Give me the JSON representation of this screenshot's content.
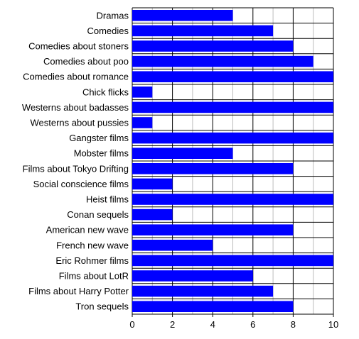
{
  "chart_data": {
    "type": "bar",
    "orientation": "horizontal",
    "title": "",
    "xlabel": "",
    "ylabel": "",
    "categories": [
      "Dramas",
      "Comedies",
      "Comedies about stoners",
      "Comedies about poo",
      "Comedies about romance",
      "Chick flicks",
      "Westerns about badasses",
      "Westerns about pussies",
      "Gangster films",
      "Mobster films",
      "Films about Tokyo Drifting",
      "Social conscience films",
      "Heist films",
      "Conan sequels",
      "American new wave",
      "French new wave",
      "Eric Rohmer films",
      "Films about LotR",
      "Films about Harry Potter",
      "Tron sequels"
    ],
    "values": [
      5,
      7,
      8,
      9,
      10,
      1,
      10,
      1,
      10,
      5,
      8,
      2,
      10,
      2,
      8,
      4,
      10,
      6,
      7,
      8
    ],
    "xlim": [
      0,
      10
    ],
    "xticks": [
      0,
      2,
      4,
      6,
      8,
      10
    ],
    "grid": "vertical every 1 unit",
    "legend": "none",
    "colors": {
      "bar": "#0000ff",
      "grid": "#000000",
      "background": "#ffffff"
    }
  }
}
